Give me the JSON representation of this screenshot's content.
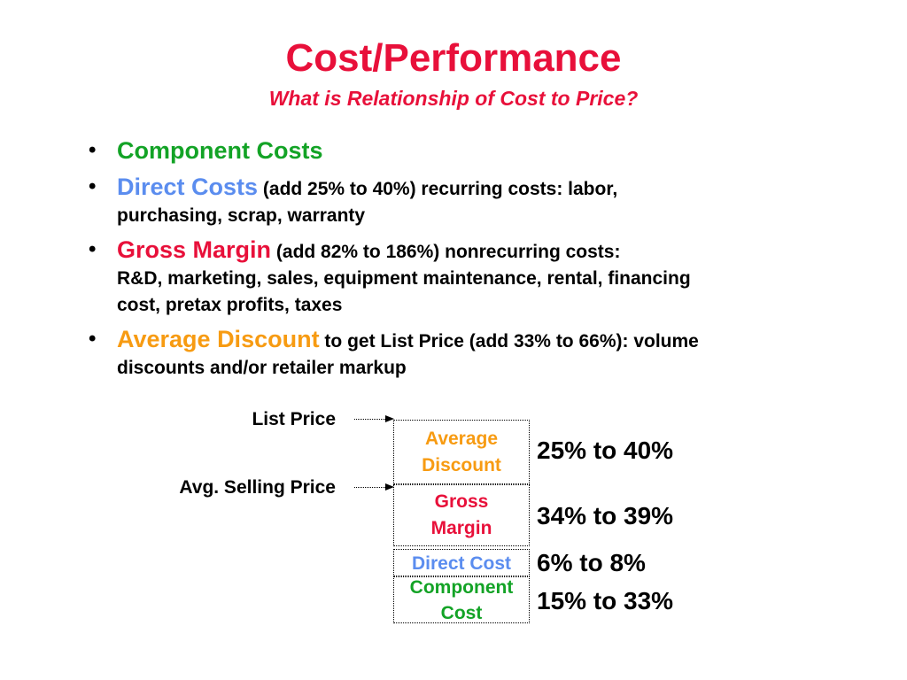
{
  "slide": {
    "title": "Cost/Performance",
    "subtitle": "What is Relationship of Cost to Price?"
  },
  "bullets": [
    {
      "keyword": "Component Costs",
      "keyword_color": "#13a326",
      "desc_inline": "",
      "desc_lines": []
    },
    {
      "keyword": "Direct Costs",
      "keyword_color": "#5b8def",
      "desc_inline": "(add 25% to 40%) recurring costs: labor,",
      "desc_lines": [
        "purchasing, scrap, warranty"
      ]
    },
    {
      "keyword": "Gross Margin",
      "keyword_color": "#e8103a",
      "desc_inline": "(add 82% to 186%) nonrecurring costs:",
      "desc_lines": [
        "R&D, marketing, sales, equipment maintenance, rental, financing",
        "cost, pretax profits, taxes"
      ]
    },
    {
      "keyword": "Average Discount",
      "keyword_color": "#f79b12",
      "desc_inline": "to get List Price (add 33% to 66%): volume",
      "desc_lines": [
        "discounts and/or retailer markup"
      ]
    }
  ],
  "diagram": {
    "list_price_label": "List Price",
    "avg_selling_price_label": "Avg. Selling Price",
    "boxes": {
      "average_discount": [
        "Average",
        "Discount"
      ],
      "gross_margin": [
        "Gross",
        "Margin"
      ],
      "direct_cost": [
        "Direct Cost"
      ],
      "component_cost": [
        "Component",
        "Cost"
      ]
    },
    "percentages": {
      "average_discount": "25% to 40%",
      "gross_margin": "34% to 39%",
      "direct_cost": "6% to 8%",
      "component_cost": "15% to 33%"
    }
  }
}
